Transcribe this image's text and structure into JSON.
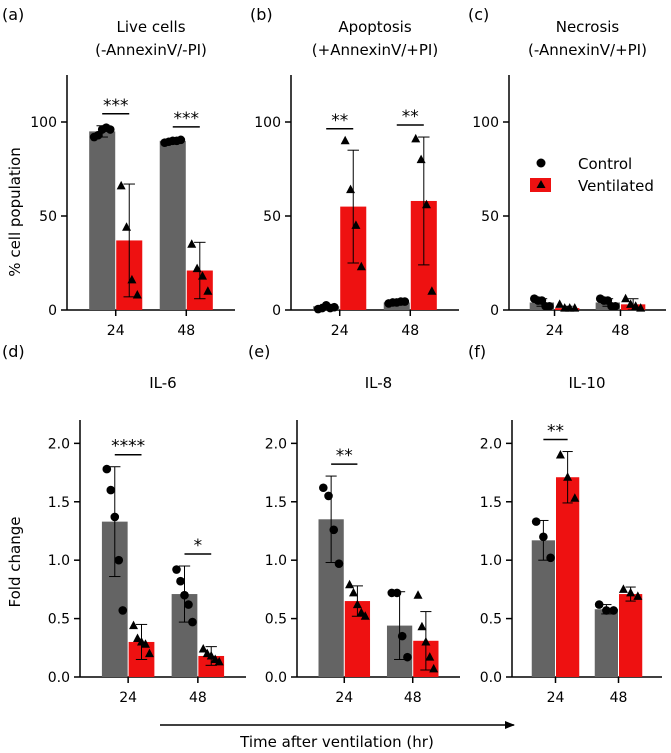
{
  "figure": {
    "xlabel": "Time after ventilation (hr)",
    "ylabel_top": "% cell population",
    "ylabel_bottom": "Fold change",
    "legend": [
      {
        "label": "Control",
        "color": "#646464",
        "marker": "circle"
      },
      {
        "label": "Ventilated",
        "color": "#ee1111",
        "marker": "triangle"
      }
    ],
    "colors": {
      "control": "#646464",
      "ventilated": "#ee1111"
    }
  },
  "chart_data": [
    {
      "panel": "(a)",
      "type": "bar",
      "title": "Live cells",
      "subtitle": "(-AnnexinV/-PI)",
      "categories": [
        "24",
        "48"
      ],
      "ylim": [
        0,
        125
      ],
      "yticks": [
        0,
        50,
        100
      ],
      "series": [
        {
          "name": "Control",
          "values": [
            95,
            90
          ],
          "err": [
            3,
            1
          ],
          "points": [
            [
              92,
              93,
              96,
              97,
              96
            ],
            [
              89,
              89.5,
              90,
              90,
              90.5
            ]
          ]
        },
        {
          "name": "Ventilated",
          "values": [
            37,
            21
          ],
          "err": [
            30,
            15
          ],
          "points": [
            [
              66,
              44,
              16,
              8
            ],
            [
              35,
              22,
              18,
              10
            ]
          ]
        }
      ],
      "significance": [
        {
          "group": "24",
          "label": "***"
        },
        {
          "group": "48",
          "label": "***"
        }
      ]
    },
    {
      "panel": "(b)",
      "type": "bar",
      "title": "Apoptosis",
      "subtitle": "(+AnnexinV/+PI)",
      "categories": [
        "24",
        "48"
      ],
      "ylim": [
        0,
        125
      ],
      "yticks": [
        0,
        50,
        100
      ],
      "series": [
        {
          "name": "Control",
          "values": [
            2,
            4
          ],
          "err": [
            1,
            1
          ],
          "points": [
            [
              0.5,
              1,
              2.5,
              1,
              1.5
            ],
            [
              3.5,
              4,
              4,
              4.5,
              4.5
            ]
          ]
        },
        {
          "name": "Ventilated",
          "values": [
            55,
            58
          ],
          "err": [
            30,
            34
          ],
          "points": [
            [
              90,
              64,
              45,
              23
            ],
            [
              91,
              80,
              56,
              10
            ]
          ]
        }
      ],
      "significance": [
        {
          "group": "24",
          "label": "**"
        },
        {
          "group": "48",
          "label": "**"
        }
      ]
    },
    {
      "panel": "(c)",
      "type": "bar",
      "title": "Necrosis",
      "subtitle": "(-AnnexinV/+PI)",
      "categories": [
        "24",
        "48"
      ],
      "ylim": [
        0,
        125
      ],
      "yticks": [
        0,
        50,
        100
      ],
      "series": [
        {
          "name": "Control",
          "values": [
            4,
            4
          ],
          "err": [
            2,
            2
          ],
          "points": [
            [
              6,
              5,
              5,
              2,
              2
            ],
            [
              6,
              5,
              5,
              2,
              2
            ]
          ]
        },
        {
          "name": "Ventilated",
          "values": [
            1,
            3
          ],
          "err": [
            1,
            3
          ],
          "points": [
            [
              3,
              1,
              1,
              1
            ],
            [
              6,
              3,
              2,
              1
            ]
          ]
        }
      ],
      "significance": [],
      "legend_in_panel": true
    },
    {
      "panel": "(d)",
      "type": "bar",
      "title": "IL-6",
      "subtitle": "",
      "categories": [
        "24",
        "48"
      ],
      "ylim": [
        0,
        2.2
      ],
      "yticks": [
        0.0,
        0.5,
        1.0,
        1.5,
        2.0
      ],
      "series": [
        {
          "name": "Control",
          "values": [
            1.33,
            0.71
          ],
          "err": [
            0.47,
            0.24
          ],
          "points": [
            [
              1.78,
              1.6,
              1.37,
              1.0,
              0.57
            ],
            [
              0.92,
              0.82,
              0.7,
              0.62,
              0.47
            ]
          ]
        },
        {
          "name": "Ventilated",
          "values": [
            0.3,
            0.18
          ],
          "err": [
            0.15,
            0.08
          ],
          "points": [
            [
              0.44,
              0.33,
              0.3,
              0.28,
              0.2
            ],
            [
              0.24,
              0.2,
              0.18,
              0.15,
              0.13
            ]
          ]
        }
      ],
      "significance": [
        {
          "group": "24",
          "label": "****"
        },
        {
          "group": "48",
          "label": "*"
        }
      ]
    },
    {
      "panel": "(e)",
      "type": "bar",
      "title": "IL-8",
      "subtitle": "",
      "categories": [
        "24",
        "48"
      ],
      "ylim": [
        0,
        2.2
      ],
      "yticks": [
        0.0,
        0.5,
        1.0,
        1.5,
        2.0
      ],
      "series": [
        {
          "name": "Control",
          "values": [
            1.35,
            0.44
          ],
          "err": [
            0.37,
            0.29
          ],
          "points": [
            [
              1.62,
              1.55,
              1.26,
              0.97
            ],
            [
              0.72,
              0.72,
              0.35,
              0.17
            ]
          ]
        },
        {
          "name": "Ventilated",
          "values": [
            0.65,
            0.31
          ],
          "err": [
            0.13,
            0.25
          ],
          "points": [
            [
              0.79,
              0.72,
              0.62,
              0.55,
              0.52
            ],
            [
              0.7,
              0.43,
              0.3,
              0.17,
              0.07
            ]
          ]
        }
      ],
      "significance": [
        {
          "group": "24",
          "label": "**"
        }
      ]
    },
    {
      "panel": "(f)",
      "type": "bar",
      "title": "IL-10",
      "subtitle": "",
      "categories": [
        "24",
        "48"
      ],
      "ylim": [
        0,
        2.2
      ],
      "yticks": [
        0.0,
        0.5,
        1.0,
        1.5,
        2.0
      ],
      "series": [
        {
          "name": "Control",
          "values": [
            1.17,
            0.58
          ],
          "err": [
            0.17,
            0.04
          ],
          "points": [
            [
              1.33,
              1.2,
              1.02
            ],
            [
              0.62,
              0.57,
              0.57
            ]
          ]
        },
        {
          "name": "Ventilated",
          "values": [
            1.71,
            0.71
          ],
          "err": [
            0.22,
            0.06
          ],
          "points": [
            [
              1.9,
              1.71,
              1.53
            ],
            [
              0.75,
              0.72,
              0.69
            ]
          ]
        }
      ],
      "significance": [
        {
          "group": "24",
          "label": "**"
        }
      ]
    }
  ]
}
